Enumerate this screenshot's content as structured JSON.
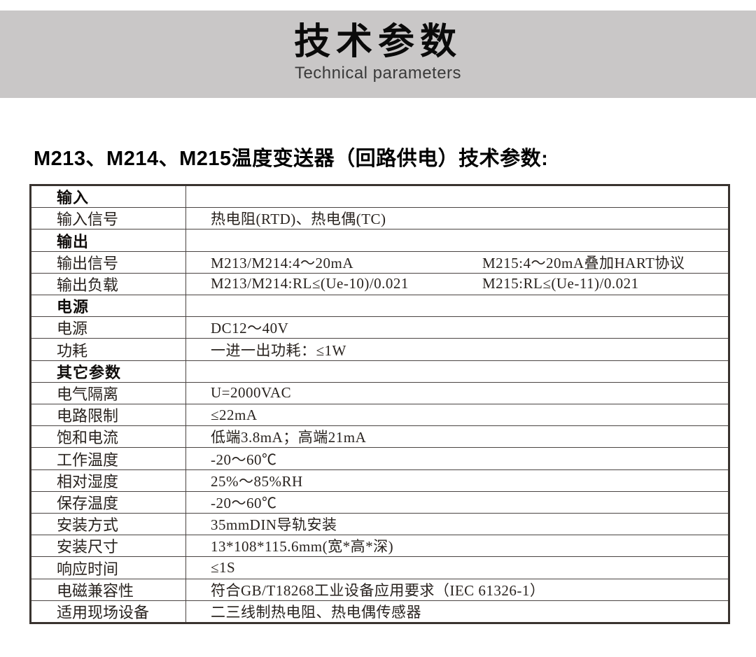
{
  "banner": {
    "title": "技术参数",
    "subtitle": "Technical parameters",
    "background_color": "#c9c7c7",
    "title_color": "#0a0a0a",
    "subtitle_color": "#3a3a3a"
  },
  "heading": "M213、M214、M215温度变送器（回路供电）技术参数:",
  "table": {
    "border_color": "#39332f",
    "line_color": "#4a4442",
    "text_color": "#29231f",
    "rows": [
      {
        "type": "section",
        "label": "输入"
      },
      {
        "type": "data",
        "label": "输入信号",
        "value": "热电阻(RTD)、热电偶(TC)"
      },
      {
        "type": "section",
        "label": "输出"
      },
      {
        "type": "data",
        "label": "输出信号",
        "value": "M213/M214:4～20mA",
        "value2": "M215:4～20mA叠加HART协议"
      },
      {
        "type": "data",
        "label": "输出负载",
        "value": "M213/M214:RL≤(Ue-10)/0.021",
        "value2": "M215:RL≤(Ue-11)/0.021"
      },
      {
        "type": "section",
        "label": "电源"
      },
      {
        "type": "data",
        "label": "电源",
        "value": "DC12～40V"
      },
      {
        "type": "data",
        "label": "功耗",
        "value": "一进一出功耗：≤1W"
      },
      {
        "type": "section",
        "label": "其它参数"
      },
      {
        "type": "data",
        "label": "电气隔离",
        "value": "U=2000VAC"
      },
      {
        "type": "data",
        "label": "电路限制",
        "value": "≤22mA"
      },
      {
        "type": "data",
        "label": "饱和电流",
        "value": "低端3.8mA；高端21mA"
      },
      {
        "type": "data",
        "label": "工作温度",
        "value": "-20～60℃"
      },
      {
        "type": "data",
        "label": "相对湿度",
        "value": "25%～85%RH"
      },
      {
        "type": "data",
        "label": "保存温度",
        "value": "-20～60℃"
      },
      {
        "type": "data",
        "label": "安装方式",
        "value": "35mmDIN导轨安装"
      },
      {
        "type": "data",
        "label": "安装尺寸",
        "value": "13*108*115.6mm(宽*高*深)"
      },
      {
        "type": "data",
        "label": "响应时间",
        "value": "≤1S"
      },
      {
        "type": "data",
        "label": "电磁兼容性",
        "value": "符合GB/T18268工业设备应用要求（IEC 61326-1）"
      },
      {
        "type": "data",
        "label": "适用现场设备",
        "value": "二三线制热电阻、热电偶传感器"
      }
    ]
  }
}
